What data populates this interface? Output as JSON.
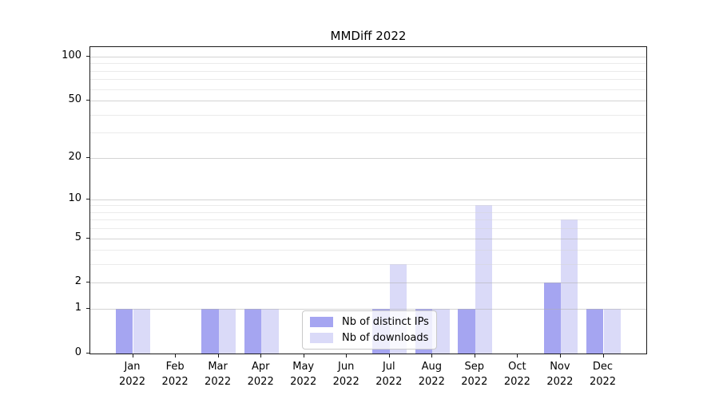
{
  "title": "MMDiff 2022",
  "colors": {
    "ips_bar": "#a5a5f1",
    "downloads_bar": "#dadaf8",
    "spine": "#1a1a1a",
    "grid_major": "#d2d2d2",
    "grid_minor": "#ececec",
    "text": "#000000"
  },
  "legend": {
    "items": [
      {
        "label": "Nb of distinct IPs",
        "color": "#a5a5f1"
      },
      {
        "label": "Nb of downloads",
        "color": "#dadaf8"
      }
    ]
  },
  "chart_data": {
    "type": "bar",
    "title": "MMDiff 2022",
    "categories": [
      "Jan 2022",
      "Feb 2022",
      "Mar 2022",
      "Apr 2022",
      "May 2022",
      "Jun 2022",
      "Jul 2022",
      "Aug 2022",
      "Sep 2022",
      "Oct 2022",
      "Nov 2022",
      "Dec 2022"
    ],
    "series": [
      {
        "name": "Nb of distinct IPs",
        "color": "#a5a5f1",
        "values": [
          1,
          0,
          1,
          1,
          0,
          0,
          1,
          1,
          1,
          0,
          2,
          1
        ]
      },
      {
        "name": "Nb of downloads",
        "color": "#dadaf8",
        "values": [
          1,
          0,
          1,
          1,
          0,
          0,
          3,
          1,
          9,
          0,
          7,
          1
        ]
      }
    ],
    "xlabel": "",
    "ylabel": "",
    "yscale": "log1p",
    "ylim": [
      0,
      116
    ],
    "yticks": [
      0,
      1,
      2,
      5,
      10,
      20,
      50,
      100
    ],
    "minor_gridlines": [
      3,
      4,
      6,
      7,
      8,
      9,
      30,
      40,
      60,
      70,
      80,
      90
    ],
    "grid": true,
    "bar_group_width": 0.8,
    "legend_position": "lower center"
  }
}
